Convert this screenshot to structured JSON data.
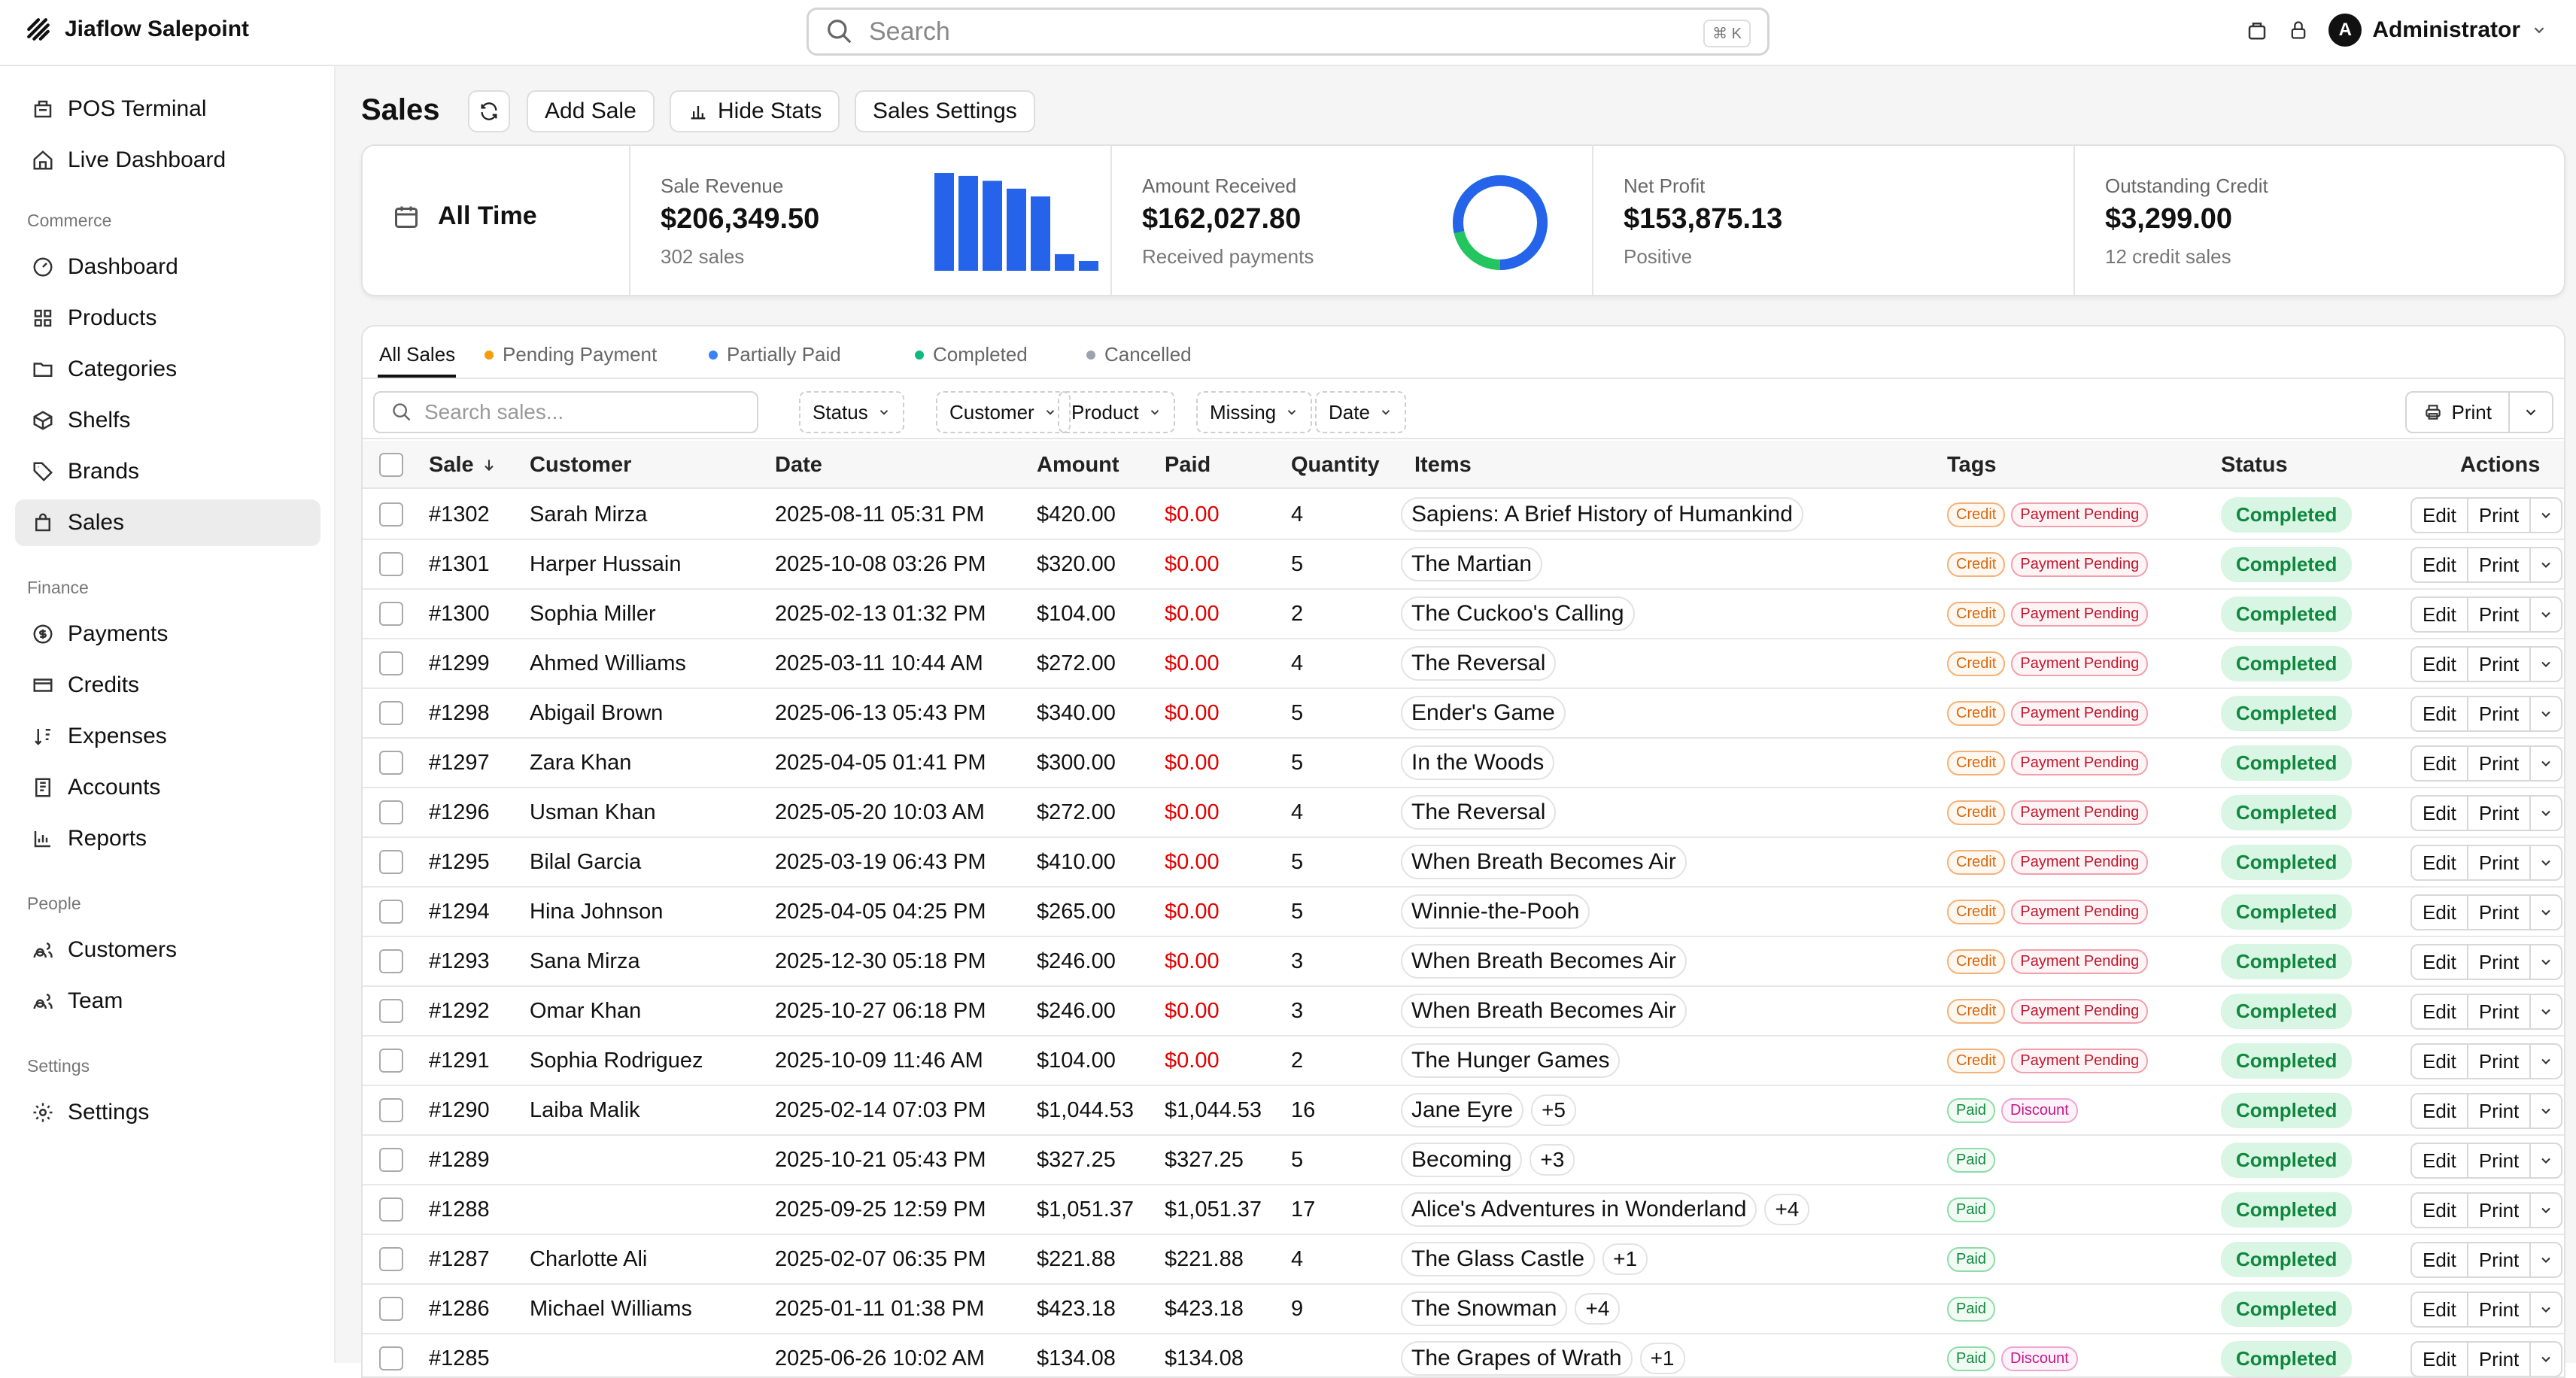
{
  "app": {
    "title": "Jiaflow Salepoint"
  },
  "search": {
    "placeholder": "Search",
    "shortcut": "⌘ K"
  },
  "user": {
    "initial": "A",
    "name": "Administrator"
  },
  "sidebar": {
    "top": [
      {
        "label": "POS Terminal",
        "icon": "pos-icon"
      },
      {
        "label": "Live Dashboard",
        "icon": "home-icon"
      }
    ],
    "sections": [
      {
        "title": "Commerce",
        "items": [
          {
            "label": "Dashboard",
            "icon": "gauge-icon"
          },
          {
            "label": "Products",
            "icon": "grid-icon"
          },
          {
            "label": "Categories",
            "icon": "folder-icon"
          },
          {
            "label": "Shelfs",
            "icon": "box-icon"
          },
          {
            "label": "Brands",
            "icon": "tag-icon"
          },
          {
            "label": "Sales",
            "icon": "cart-icon",
            "active": true
          }
        ]
      },
      {
        "title": "Finance",
        "items": [
          {
            "label": "Payments",
            "icon": "dollar-icon"
          },
          {
            "label": "Credits",
            "icon": "card-icon"
          },
          {
            "label": "Expenses",
            "icon": "sort-icon"
          },
          {
            "label": "Accounts",
            "icon": "ledger-icon"
          },
          {
            "label": "Reports",
            "icon": "chart-icon"
          }
        ]
      },
      {
        "title": "People",
        "items": [
          {
            "label": "Customers",
            "icon": "users-icon"
          },
          {
            "label": "Team",
            "icon": "users-icon"
          }
        ]
      },
      {
        "title": "Settings",
        "items": [
          {
            "label": "Settings",
            "icon": "gear-icon"
          }
        ]
      }
    ]
  },
  "header": {
    "title": "Sales",
    "add": "Add Sale",
    "hide_stats": "Hide Stats",
    "settings": "Sales Settings"
  },
  "stats": {
    "period": "All Time",
    "revenue": {
      "label": "Sale Revenue",
      "value": "$206,349.50",
      "sub": "302 sales",
      "bars": [
        100,
        97,
        92,
        84,
        76,
        17,
        10
      ]
    },
    "received": {
      "label": "Amount Received",
      "value": "$162,027.80",
      "sub": "Received payments",
      "fraction": 0.785
    },
    "profit": {
      "label": "Net Profit",
      "value": "$153,875.13",
      "sub": "Positive"
    },
    "credit": {
      "label": "Outstanding Credit",
      "value": "$3,299.00",
      "sub": "12 credit sales"
    },
    "colors": {
      "blue": "#2563eb",
      "green": "#22c55e"
    }
  },
  "tabs": [
    {
      "label": "All Sales",
      "dot": null
    },
    {
      "label": "Pending Payment",
      "dot": "#f59e0b"
    },
    {
      "label": "Partially Paid",
      "dot": "#3b82f6"
    },
    {
      "label": "Completed",
      "dot": "#10b981"
    },
    {
      "label": "Cancelled",
      "dot": "#9ca3af"
    }
  ],
  "filters": {
    "search_placeholder": "Search sales...",
    "buttons": [
      "Status",
      "Customer",
      "Product",
      "Missing",
      "Date"
    ],
    "print": "Print"
  },
  "table": {
    "columns": {
      "sale": "Sale",
      "customer": "Customer",
      "date": "Date",
      "amount": "Amount",
      "paid": "Paid",
      "quantity": "Quantity",
      "items": "Items",
      "tags": "Tags",
      "status": "Status",
      "actions": "Actions"
    },
    "edit": "Edit",
    "print": "Print",
    "rows": [
      {
        "id": "#1302",
        "customer": "Sarah Mirza",
        "date": "2025-08-11 05:31 PM",
        "amount": "$420.00",
        "paid": "$0.00",
        "qty": "4",
        "item": "Sapiens: A Brief History of Humankind",
        "more": "",
        "tags": [
          "Credit",
          "Payment Pending"
        ],
        "status": "Completed"
      },
      {
        "id": "#1301",
        "customer": "Harper Hussain",
        "date": "2025-10-08 03:26 PM",
        "amount": "$320.00",
        "paid": "$0.00",
        "qty": "5",
        "item": "The Martian",
        "more": "",
        "tags": [
          "Credit",
          "Payment Pending"
        ],
        "status": "Completed"
      },
      {
        "id": "#1300",
        "customer": "Sophia Miller",
        "date": "2025-02-13 01:32 PM",
        "amount": "$104.00",
        "paid": "$0.00",
        "qty": "2",
        "item": "The Cuckoo's Calling",
        "more": "",
        "tags": [
          "Credit",
          "Payment Pending"
        ],
        "status": "Completed"
      },
      {
        "id": "#1299",
        "customer": "Ahmed Williams",
        "date": "2025-03-11 10:44 AM",
        "amount": "$272.00",
        "paid": "$0.00",
        "qty": "4",
        "item": "The Reversal",
        "more": "",
        "tags": [
          "Credit",
          "Payment Pending"
        ],
        "status": "Completed"
      },
      {
        "id": "#1298",
        "customer": "Abigail Brown",
        "date": "2025-06-13 05:43 PM",
        "amount": "$340.00",
        "paid": "$0.00",
        "qty": "5",
        "item": "Ender's Game",
        "more": "",
        "tags": [
          "Credit",
          "Payment Pending"
        ],
        "status": "Completed"
      },
      {
        "id": "#1297",
        "customer": "Zara Khan",
        "date": "2025-04-05 01:41 PM",
        "amount": "$300.00",
        "paid": "$0.00",
        "qty": "5",
        "item": "In the Woods",
        "more": "",
        "tags": [
          "Credit",
          "Payment Pending"
        ],
        "status": "Completed"
      },
      {
        "id": "#1296",
        "customer": "Usman Khan",
        "date": "2025-05-20 10:03 AM",
        "amount": "$272.00",
        "paid": "$0.00",
        "qty": "4",
        "item": "The Reversal",
        "more": "",
        "tags": [
          "Credit",
          "Payment Pending"
        ],
        "status": "Completed"
      },
      {
        "id": "#1295",
        "customer": "Bilal Garcia",
        "date": "2025-03-19 06:43 PM",
        "amount": "$410.00",
        "paid": "$0.00",
        "qty": "5",
        "item": "When Breath Becomes Air",
        "more": "",
        "tags": [
          "Credit",
          "Payment Pending"
        ],
        "status": "Completed"
      },
      {
        "id": "#1294",
        "customer": "Hina Johnson",
        "date": "2025-04-05 04:25 PM",
        "amount": "$265.00",
        "paid": "$0.00",
        "qty": "5",
        "item": "Winnie-the-Pooh",
        "more": "",
        "tags": [
          "Credit",
          "Payment Pending"
        ],
        "status": "Completed"
      },
      {
        "id": "#1293",
        "customer": "Sana Mirza",
        "date": "2025-12-30 05:18 PM",
        "amount": "$246.00",
        "paid": "$0.00",
        "qty": "3",
        "item": "When Breath Becomes Air",
        "more": "",
        "tags": [
          "Credit",
          "Payment Pending"
        ],
        "status": "Completed"
      },
      {
        "id": "#1292",
        "customer": "Omar Khan",
        "date": "2025-10-27 06:18 PM",
        "amount": "$246.00",
        "paid": "$0.00",
        "qty": "3",
        "item": "When Breath Becomes Air",
        "more": "",
        "tags": [
          "Credit",
          "Payment Pending"
        ],
        "status": "Completed"
      },
      {
        "id": "#1291",
        "customer": "Sophia Rodriguez",
        "date": "2025-10-09 11:46 AM",
        "amount": "$104.00",
        "paid": "$0.00",
        "qty": "2",
        "item": "The Hunger Games",
        "more": "",
        "tags": [
          "Credit",
          "Payment Pending"
        ],
        "status": "Completed"
      },
      {
        "id": "#1290",
        "customer": "Laiba Malik",
        "date": "2025-02-14 07:03 PM",
        "amount": "$1,044.53",
        "paid": "$1,044.53",
        "qty": "16",
        "item": "Jane Eyre",
        "more": "+5",
        "tags": [
          "Paid",
          "Discount"
        ],
        "status": "Completed"
      },
      {
        "id": "#1289",
        "customer": "",
        "date": "2025-10-21 05:43 PM",
        "amount": "$327.25",
        "paid": "$327.25",
        "qty": "5",
        "item": "Becoming",
        "more": "+3",
        "tags": [
          "Paid"
        ],
        "status": "Completed"
      },
      {
        "id": "#1288",
        "customer": "",
        "date": "2025-09-25 12:59 PM",
        "amount": "$1,051.37",
        "paid": "$1,051.37",
        "qty": "17",
        "item": "Alice's Adventures in Wonderland",
        "more": "+4",
        "tags": [
          "Paid"
        ],
        "status": "Completed"
      },
      {
        "id": "#1287",
        "customer": "Charlotte Ali",
        "date": "2025-02-07 06:35 PM",
        "amount": "$221.88",
        "paid": "$221.88",
        "qty": "4",
        "item": "The Glass Castle",
        "more": "+1",
        "tags": [
          "Paid"
        ],
        "status": "Completed"
      },
      {
        "id": "#1286",
        "customer": "Michael Williams",
        "date": "2025-01-11 01:38 PM",
        "amount": "$423.18",
        "paid": "$423.18",
        "qty": "9",
        "item": "The Snowman",
        "more": "+4",
        "tags": [
          "Paid"
        ],
        "status": "Completed"
      },
      {
        "id": "#1285",
        "customer": "",
        "date": "2025-06-26 10:02 AM",
        "amount": "$134.08",
        "paid": "$134.08",
        "qty": "",
        "item": "The Grapes of Wrath",
        "more": "+1",
        "tags": [
          "Paid",
          "Discount"
        ],
        "status": "Completed"
      }
    ]
  }
}
